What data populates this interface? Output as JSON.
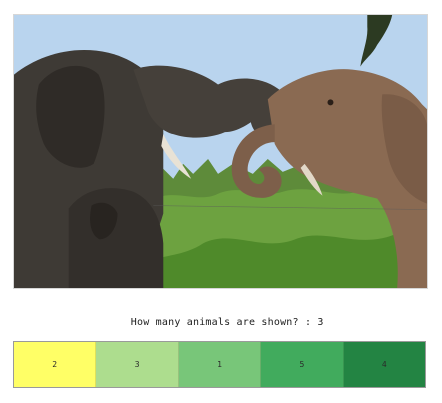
{
  "image": {
    "alt": "Elephants in a green bush landscape"
  },
  "qa": {
    "question": "How many animals are shown?",
    "separator": " : ",
    "answer": "3"
  },
  "answer_bar": {
    "cells": [
      {
        "label": "2",
        "color": "#ffff66"
      },
      {
        "label": "3",
        "color": "#addd8e"
      },
      {
        "label": "1",
        "color": "#78c679"
      },
      {
        "label": "5",
        "color": "#41ab5d"
      },
      {
        "label": "4",
        "color": "#238443"
      }
    ]
  }
}
